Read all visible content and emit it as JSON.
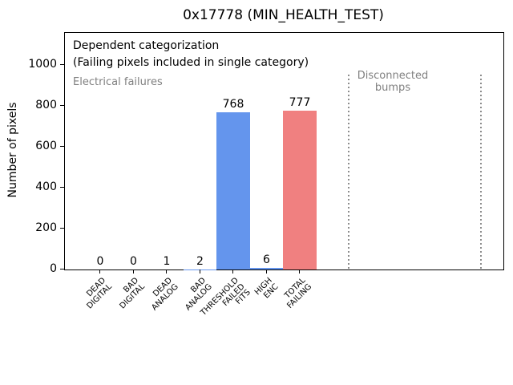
{
  "title": "0x17778 (MIN_HEALTH_TEST)",
  "ylabel": "Number of pixels",
  "annotations": {
    "dependent": "Dependent categorization",
    "failing": "(Failing pixels included in single category)",
    "electrical": "Electrical failures",
    "disconnected_line1": "Disconnected",
    "disconnected_line2": "bumps"
  },
  "colors": {
    "bar_blue": "#6495ED",
    "bar_red": "#F08080",
    "gray_text": "#808080",
    "dotted_line": "#8c8c8c",
    "axis": "#000000"
  },
  "chart_data": {
    "type": "bar",
    "title": "0x17778 (MIN_HEALTH_TEST)",
    "xlabel": "",
    "ylabel": "Number of pixels",
    "categories": [
      "DEAD DIGITAL",
      "BAD DIGITAL",
      "DEAD ANALOG",
      "BAD ANALOG",
      "THRESHOLD FAILED FITS",
      "HIGH ENC",
      "TOTAL FAILING"
    ],
    "tick_label_lines": [
      [
        "DEAD",
        "DIGITAL"
      ],
      [
        "BAD",
        "DIGITAL"
      ],
      [
        "DEAD",
        "ANALOG"
      ],
      [
        "BAD",
        "ANALOG"
      ],
      [
        "THRESHOLD",
        "FAILED",
        "FITS"
      ],
      [
        "HIGH",
        "ENC"
      ],
      [
        "TOTAL",
        "FAILING"
      ]
    ],
    "values": [
      0,
      0,
      1,
      2,
      768,
      6,
      777
    ],
    "value_labels": [
      "0",
      "0",
      "1",
      "2",
      "768",
      "6",
      "777"
    ],
    "bar_colors": [
      "#6495ED",
      "#6495ED",
      "#6495ED",
      "#6495ED",
      "#6495ED",
      "#6495ED",
      "#F08080"
    ],
    "yticks": [
      0,
      200,
      400,
      600,
      800,
      1000
    ],
    "ylim": [
      0,
      1157
    ],
    "grid": false,
    "legend_position": "none",
    "annotations_text": [
      "Dependent categorization",
      "(Failing pixels included in single category)",
      "Electrical failures",
      "Disconnected bumps"
    ]
  }
}
